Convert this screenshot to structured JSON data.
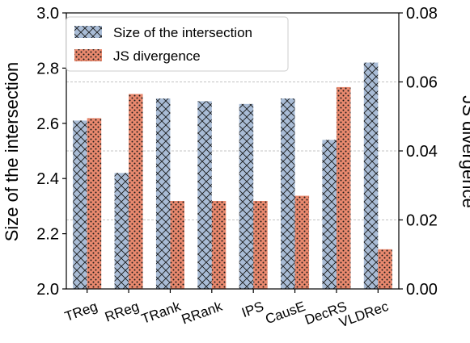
{
  "chart_data": {
    "type": "bar",
    "categories": [
      "TReg",
      "RReg",
      "TRank",
      "RRank",
      "IPS",
      "CausE",
      "DecRS",
      "VLDRec"
    ],
    "series": [
      {
        "name": "Size of the intersection",
        "axis": "left",
        "color": "#a9bcd6",
        "pattern": "crosshatch",
        "values": [
          2.61,
          2.42,
          2.69,
          2.68,
          2.67,
          2.69,
          2.54,
          2.82
        ]
      },
      {
        "name": "JS divergence",
        "axis": "right",
        "color": "#e9896e",
        "pattern": "dots",
        "values": [
          0.0495,
          0.0565,
          0.0255,
          0.0255,
          0.0255,
          0.027,
          0.0585,
          0.0115
        ]
      }
    ],
    "ylabel_left": "Size of the intersection",
    "ylabel_right": "JS divergence",
    "ylim_left": [
      2.0,
      3.0
    ],
    "ylim_right": [
      0.0,
      0.08
    ],
    "yticks_left": [
      "2.0",
      "2.2",
      "2.4",
      "2.6",
      "2.8",
      "3.0"
    ],
    "yticks_right": [
      "0.00",
      "0.02",
      "0.04",
      "0.06",
      "0.08"
    ],
    "grid": "horizontal dashed",
    "legend_position": "upper-left"
  }
}
